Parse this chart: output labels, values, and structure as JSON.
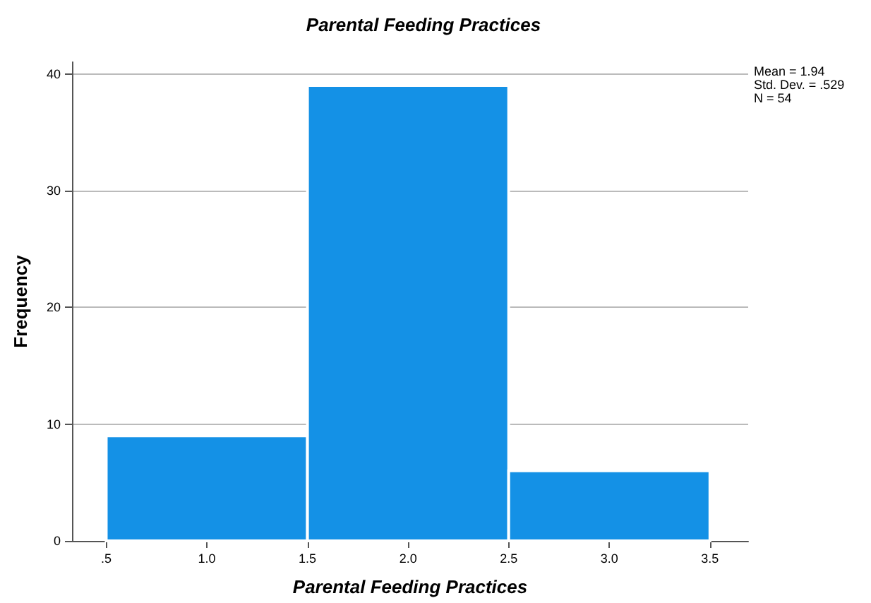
{
  "chart_data": {
    "type": "histogram",
    "title": "Parental Feeding Practices",
    "xlabel": "Parental Feeding Practices",
    "ylabel": "Frequency",
    "bins": [
      0.5,
      1.5,
      2.5,
      3.5
    ],
    "values": [
      9,
      39,
      6
    ],
    "color": "#1491e6",
    "xlim": [
      0.33,
      3.69
    ],
    "xticks": [
      {
        "value": 0.5,
        "label": ".5"
      },
      {
        "value": 1,
        "label": "1.0"
      },
      {
        "value": 1.5,
        "label": "1.5"
      },
      {
        "value": 2,
        "label": "2.0"
      },
      {
        "value": 2.5,
        "label": "2.5"
      },
      {
        "value": 3,
        "label": "3.0"
      },
      {
        "value": 3.5,
        "label": "3.5"
      }
    ],
    "ylim": [
      0,
      41
    ],
    "yticks": [
      0,
      10,
      20,
      30,
      40
    ],
    "grid": "y",
    "annotations": [
      "Mean = 1.94",
      "Std. Dev. = .529",
      "N = 54"
    ]
  }
}
